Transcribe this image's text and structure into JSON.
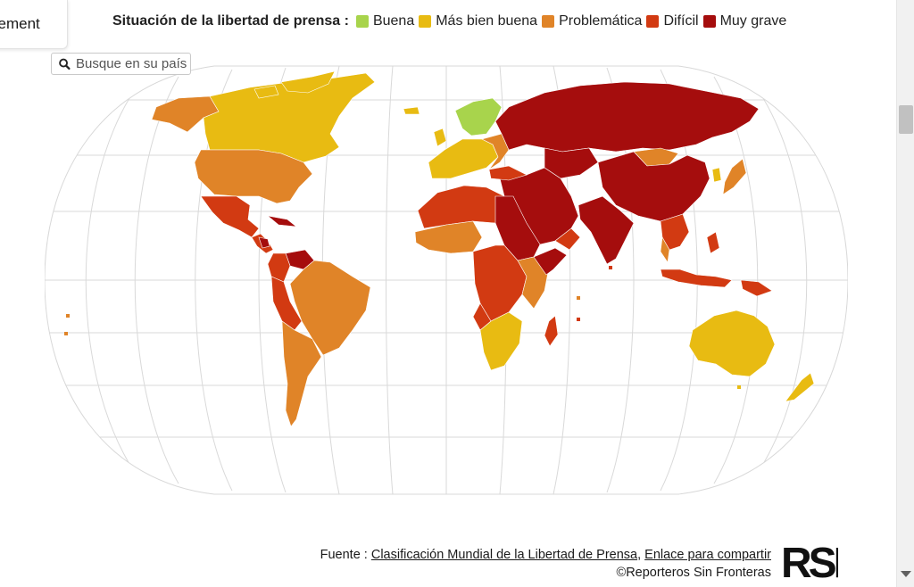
{
  "tab": {
    "label": "sement"
  },
  "legend": {
    "title": "Situación de la libertad de prensa :",
    "items": [
      {
        "label": "Buena",
        "color": "#a8d44c"
      },
      {
        "label": "Más bien buena",
        "color": "#e8bb12"
      },
      {
        "label": "Problemática",
        "color": "#e08428"
      },
      {
        "label": "Difícil",
        "color": "#d23a12"
      },
      {
        "label": "Muy grave",
        "color": "#a50d0d"
      }
    ]
  },
  "search": {
    "placeholder": "Busque en su país",
    "icon": "search-icon"
  },
  "footer": {
    "source_prefix": "Fuente : ",
    "source_link": "Clasificación Mundial de la Libertad de Prensa",
    "separator": ", ",
    "share_link": "Enlace para compartir",
    "copyright": "©Reporteros Sin Fronteras"
  },
  "logo": {
    "text": "RSF"
  }
}
